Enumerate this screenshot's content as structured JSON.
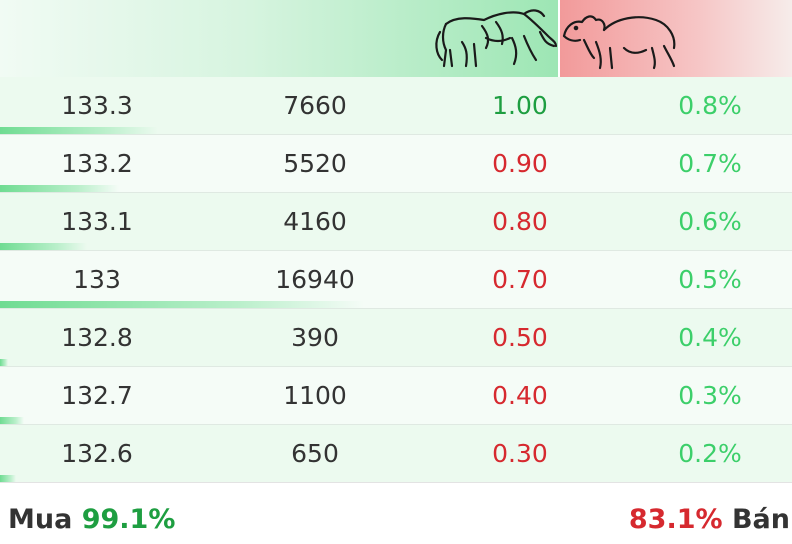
{
  "header": {
    "bull_icon": "bull-icon",
    "bear_icon": "bear-icon",
    "colors": {
      "buy_side": "#9de6b4",
      "sell_side": "#f29a9a"
    }
  },
  "rows": [
    {
      "price": "133.3",
      "volume": "7660",
      "change": "1.00",
      "change_dir": "up",
      "percent": "0.8%",
      "volume_share": 0.2
    },
    {
      "price": "133.2",
      "volume": "5520",
      "change": "0.90",
      "change_dir": "down",
      "percent": "0.7%",
      "volume_share": 0.15
    },
    {
      "price": "133.1",
      "volume": "4160",
      "change": "0.80",
      "change_dir": "down",
      "percent": "0.6%",
      "volume_share": 0.11
    },
    {
      "price": "133",
      "volume": "16940",
      "change": "0.70",
      "change_dir": "down",
      "percent": "0.5%",
      "volume_share": 0.46
    },
    {
      "price": "132.8",
      "volume": "390",
      "change": "0.50",
      "change_dir": "down",
      "percent": "0.4%",
      "volume_share": 0.01
    },
    {
      "price": "132.7",
      "volume": "1100",
      "change": "0.40",
      "change_dir": "down",
      "percent": "0.3%",
      "volume_share": 0.03
    },
    {
      "price": "132.6",
      "volume": "650",
      "change": "0.30",
      "change_dir": "down",
      "percent": "0.2%",
      "volume_share": 0.02
    }
  ],
  "footer": {
    "buy_label": "Mua",
    "buy_percent": "99.1%",
    "sell_percent": "83.1%",
    "sell_label": "Bán"
  }
}
